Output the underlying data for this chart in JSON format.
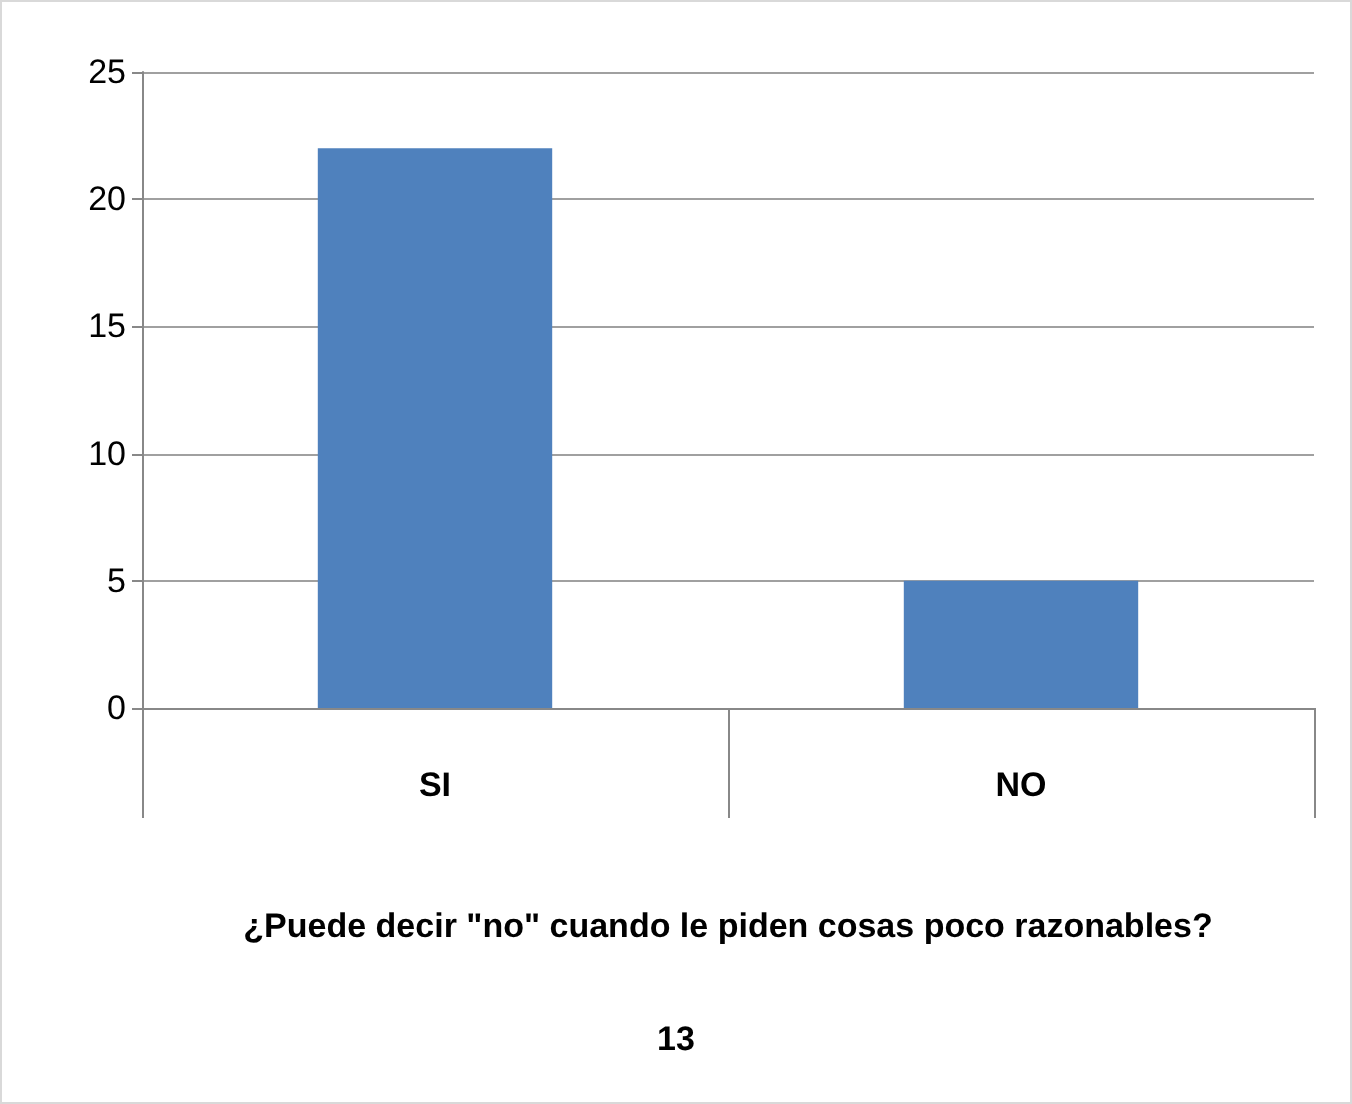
{
  "chart_data": {
    "type": "bar",
    "categories": [
      "SI",
      "NO"
    ],
    "values": [
      22,
      5
    ],
    "color": "#4f81bd",
    "xlabel": "¿Puede decir \"no\" cuando le piden cosas poco razonables?",
    "annotations": [
      "13"
    ],
    "ylim": [
      0,
      25
    ],
    "yticks": [
      0,
      5,
      10,
      15,
      20,
      25
    ],
    "grid": "y"
  }
}
